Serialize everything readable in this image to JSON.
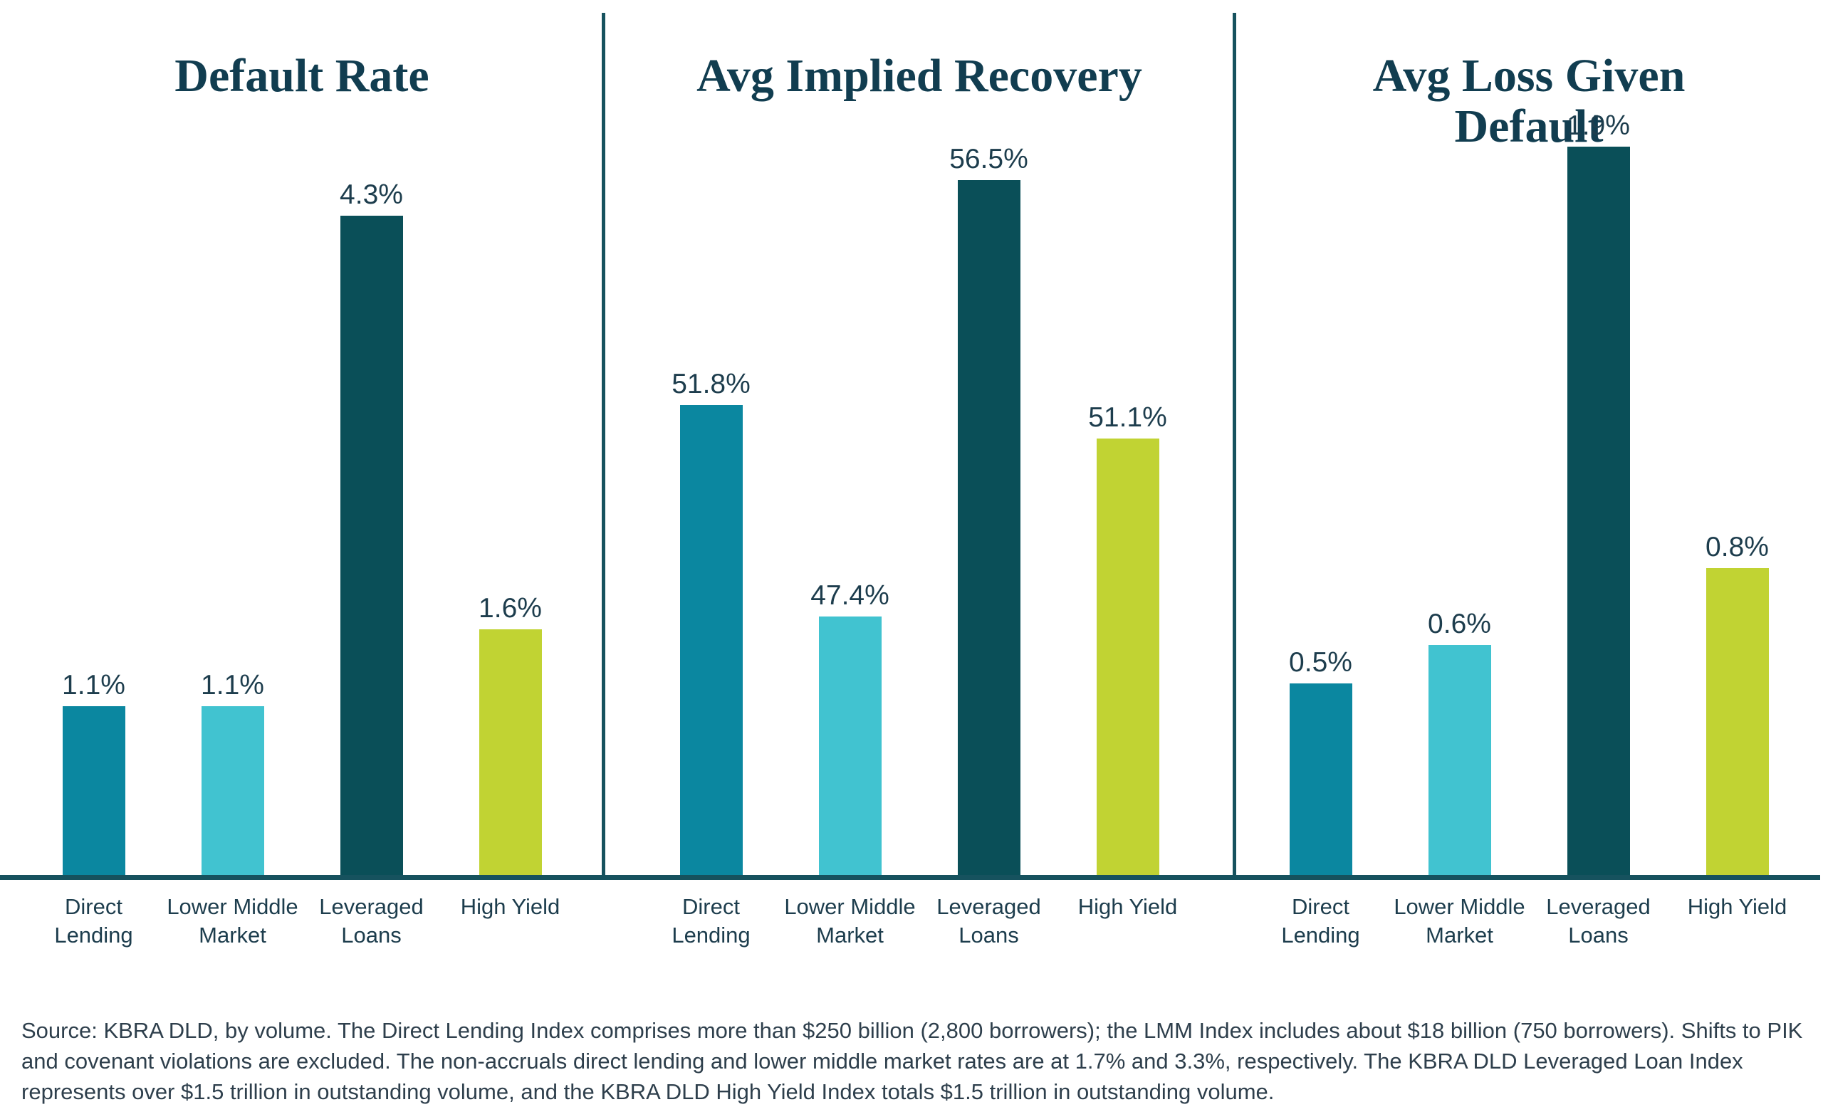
{
  "chart_data": {
    "type": "bar",
    "categories": [
      "Direct\nLending",
      "Lower Middle\nMarket",
      "Leveraged\nLoans",
      "High Yield"
    ],
    "bar_colors": [
      "#0b87a0",
      "#41c3d0",
      "#0a4f58",
      "#c1d333"
    ],
    "panels": [
      {
        "title": "Default Rate",
        "values": [
          1.1,
          1.1,
          4.3,
          1.6
        ],
        "value_labels": [
          "1.1%",
          "1.1%",
          "4.3%",
          "1.6%"
        ],
        "ylim": [
          0,
          5
        ],
        "grid": false,
        "legend": false
      },
      {
        "title": "Avg Implied Recovery",
        "values": [
          51.8,
          47.4,
          56.5,
          51.1
        ],
        "value_labels": [
          "51.8%",
          "47.4%",
          "56.5%",
          "51.1%"
        ],
        "ylim": [
          42,
          58
        ],
        "grid": false,
        "legend": false
      },
      {
        "title": "Avg Loss Given\nDefault",
        "values": [
          0.5,
          0.6,
          1.9,
          0.8
        ],
        "value_labels": [
          "0.5%",
          "0.6%",
          "1.9%",
          "0.8%"
        ],
        "ylim": [
          0,
          2
        ],
        "grid": false,
        "legend": false
      }
    ]
  },
  "colors": {
    "title": "#113d50",
    "label": "#1d3d4d",
    "axis": "#16525e",
    "source_text": "#2e3f4c",
    "background": "#ffffff"
  },
  "source_note": "Source: KBRA DLD, by volume. The Direct Lending Index comprises more than $250 billion (2,800 borrowers); the LMM Index includes about $18 billion (750 borrowers). Shifts to PIK and covenant violations are excluded. The non-accruals direct lending and lower middle market rates are at 1.7% and 3.3%, respectively. The KBRA DLD Leveraged Loan Index represents over $1.5 trillion in outstanding volume, and the KBRA DLD High Yield Index totals $1.5 trillion in outstanding volume."
}
